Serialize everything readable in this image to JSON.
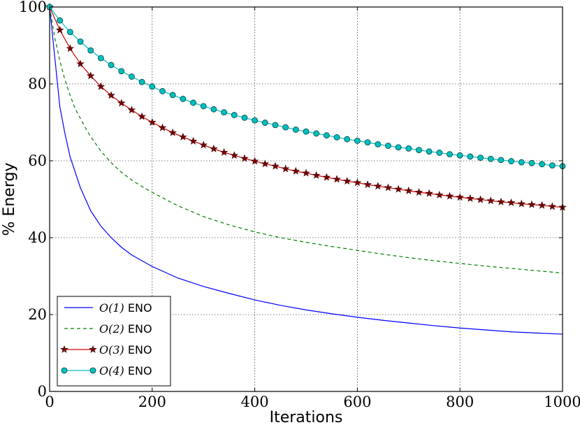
{
  "chart_data": {
    "type": "line",
    "title": "",
    "xlabel": "Iterations",
    "ylabel": "% Energy",
    "xlim": [
      0,
      1000
    ],
    "ylim": [
      0,
      100
    ],
    "xticks": [
      "0",
      "200",
      "400",
      "600",
      "800",
      "1000"
    ],
    "yticks": [
      "0",
      "20",
      "40",
      "60",
      "80",
      "100"
    ],
    "grid": true,
    "legend_position": "lower-left",
    "series": [
      {
        "name": "O(1) ENO",
        "name_math": "O(1)",
        "name_suffix": " ENO",
        "color": "#0000ff",
        "style": "solid",
        "marker": "none",
        "points": [
          [
            0,
            100
          ],
          [
            10,
            87
          ],
          [
            20,
            74
          ],
          [
            30,
            67
          ],
          [
            40,
            61
          ],
          [
            50,
            57
          ],
          [
            60,
            53
          ],
          [
            70,
            50
          ],
          [
            80,
            47
          ],
          [
            90,
            45
          ],
          [
            100,
            43
          ],
          [
            120,
            40
          ],
          [
            140,
            37.5
          ],
          [
            160,
            35.5
          ],
          [
            180,
            34
          ],
          [
            200,
            32.5
          ],
          [
            250,
            29.5
          ],
          [
            300,
            27.3
          ],
          [
            350,
            25.5
          ],
          [
            400,
            23.8
          ],
          [
            450,
            22.4
          ],
          [
            500,
            21.2
          ],
          [
            550,
            20.2
          ],
          [
            600,
            19.3
          ],
          [
            650,
            18.5
          ],
          [
            700,
            17.8
          ],
          [
            750,
            17.1
          ],
          [
            800,
            16.5
          ],
          [
            850,
            16
          ],
          [
            900,
            15.5
          ],
          [
            950,
            15.2
          ],
          [
            1000,
            14.9
          ]
        ]
      },
      {
        "name": "O(2) ENO",
        "name_math": "O(2)",
        "name_suffix": " ENO",
        "color": "#008000",
        "style": "dashed",
        "marker": "none",
        "points": [
          [
            0,
            100
          ],
          [
            10,
            92
          ],
          [
            20,
            86
          ],
          [
            30,
            81
          ],
          [
            40,
            77
          ],
          [
            50,
            73.5
          ],
          [
            60,
            71
          ],
          [
            70,
            68.5
          ],
          [
            80,
            66.3
          ],
          [
            90,
            64.4
          ],
          [
            100,
            62.5
          ],
          [
            120,
            59.5
          ],
          [
            140,
            57
          ],
          [
            160,
            55
          ],
          [
            180,
            53.3
          ],
          [
            200,
            51.8
          ],
          [
            250,
            48.3
          ],
          [
            300,
            45.5
          ],
          [
            350,
            43.3
          ],
          [
            400,
            41.5
          ],
          [
            450,
            40
          ],
          [
            500,
            38.8
          ],
          [
            550,
            37.7
          ],
          [
            600,
            36.7
          ],
          [
            650,
            35.7
          ],
          [
            700,
            34.8
          ],
          [
            750,
            34
          ],
          [
            800,
            33.3
          ],
          [
            850,
            32.6
          ],
          [
            900,
            32
          ],
          [
            950,
            31.4
          ],
          [
            1000,
            30.8
          ]
        ]
      },
      {
        "name": "O(3) ENO",
        "name_math": "O(3)",
        "name_suffix": " ENO",
        "color": "#cc0000",
        "style": "solid",
        "marker": "star",
        "points": [
          [
            0,
            100
          ],
          [
            20,
            94
          ],
          [
            40,
            89.2
          ],
          [
            60,
            85.2
          ],
          [
            80,
            82.1
          ],
          [
            100,
            79.3
          ],
          [
            120,
            77
          ],
          [
            140,
            75
          ],
          [
            160,
            73.2
          ],
          [
            180,
            71.5
          ],
          [
            200,
            70
          ],
          [
            220,
            68.6
          ],
          [
            240,
            67.3
          ],
          [
            260,
            66.2
          ],
          [
            280,
            65.1
          ],
          [
            300,
            64.1
          ],
          [
            320,
            63.1
          ],
          [
            340,
            62.2
          ],
          [
            360,
            61.4
          ],
          [
            380,
            60.6
          ],
          [
            400,
            59.9
          ],
          [
            420,
            59.2
          ],
          [
            440,
            58.6
          ],
          [
            460,
            57.9
          ],
          [
            480,
            57.3
          ],
          [
            500,
            56.8
          ],
          [
            520,
            56.2
          ],
          [
            540,
            55.7
          ],
          [
            560,
            55.2
          ],
          [
            580,
            54.7
          ],
          [
            600,
            54.3
          ],
          [
            620,
            53.8
          ],
          [
            640,
            53.4
          ],
          [
            660,
            53
          ],
          [
            680,
            52.6
          ],
          [
            700,
            52.2
          ],
          [
            720,
            51.8
          ],
          [
            740,
            51.5
          ],
          [
            760,
            51.1
          ],
          [
            780,
            50.8
          ],
          [
            800,
            50.5
          ],
          [
            820,
            50.2
          ],
          [
            840,
            49.9
          ],
          [
            860,
            49.6
          ],
          [
            880,
            49.3
          ],
          [
            900,
            49.1
          ],
          [
            920,
            48.8
          ],
          [
            940,
            48.6
          ],
          [
            960,
            48.4
          ],
          [
            980,
            48.1
          ],
          [
            1000,
            47.9
          ]
        ]
      },
      {
        "name": "O(4) ENO",
        "name_math": "O(4)",
        "name_suffix": " ENO",
        "color": "#00bfbf",
        "style": "solid",
        "marker": "circle",
        "points": [
          [
            0,
            100
          ],
          [
            20,
            96.5
          ],
          [
            40,
            93.5
          ],
          [
            60,
            91
          ],
          [
            80,
            88.7
          ],
          [
            100,
            86.7
          ],
          [
            120,
            84.9
          ],
          [
            140,
            83.3
          ],
          [
            160,
            81.9
          ],
          [
            180,
            80.5
          ],
          [
            200,
            79.3
          ],
          [
            220,
            78.1
          ],
          [
            240,
            77.1
          ],
          [
            260,
            76.1
          ],
          [
            280,
            75.1
          ],
          [
            300,
            74.2
          ],
          [
            320,
            73.4
          ],
          [
            340,
            72.6
          ],
          [
            360,
            71.9
          ],
          [
            380,
            71.2
          ],
          [
            400,
            70.5
          ],
          [
            420,
            69.9
          ],
          [
            440,
            69.3
          ],
          [
            460,
            68.7
          ],
          [
            480,
            68.1
          ],
          [
            500,
            67.6
          ],
          [
            520,
            67.1
          ],
          [
            540,
            66.6
          ],
          [
            560,
            66.1
          ],
          [
            580,
            65.6
          ],
          [
            600,
            65.2
          ],
          [
            620,
            64.8
          ],
          [
            640,
            64.3
          ],
          [
            660,
            63.9
          ],
          [
            680,
            63.5
          ],
          [
            700,
            63.2
          ],
          [
            720,
            62.8
          ],
          [
            740,
            62.4
          ],
          [
            760,
            62.1
          ],
          [
            780,
            61.7
          ],
          [
            800,
            61.4
          ],
          [
            820,
            61.1
          ],
          [
            840,
            60.8
          ],
          [
            860,
            60.5
          ],
          [
            880,
            60.2
          ],
          [
            900,
            59.9
          ],
          [
            920,
            59.6
          ],
          [
            940,
            59.4
          ],
          [
            960,
            59.1
          ],
          [
            980,
            58.8
          ],
          [
            1000,
            58.6
          ]
        ]
      }
    ]
  }
}
